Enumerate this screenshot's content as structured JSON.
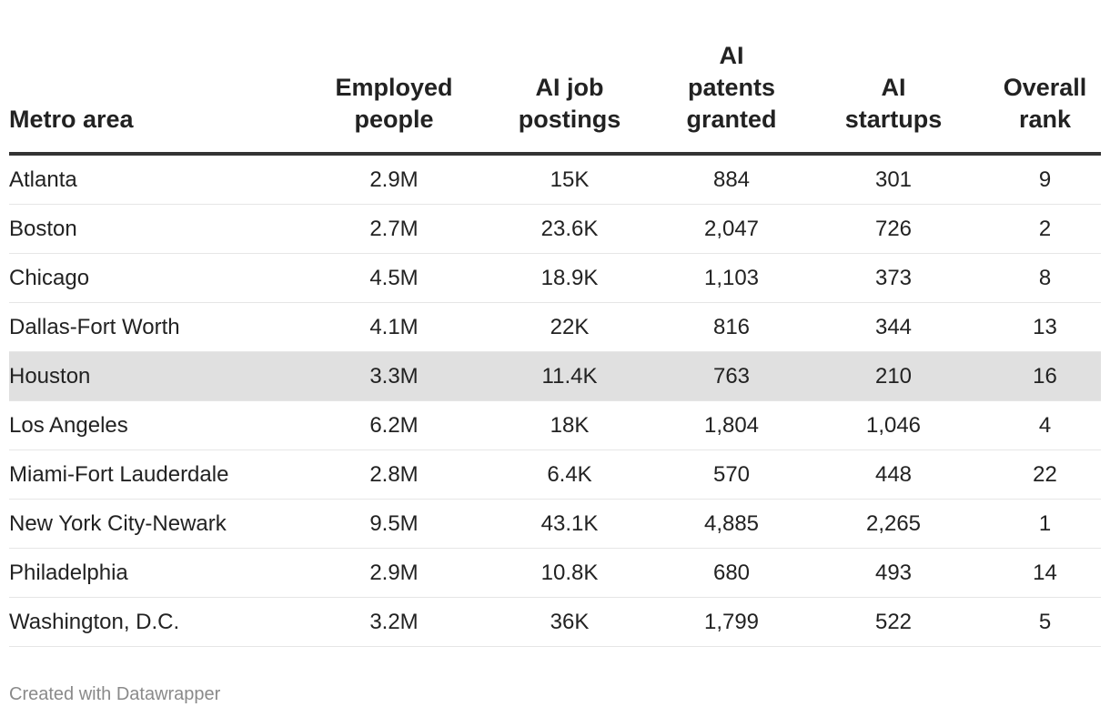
{
  "headers": [
    "Metro area",
    "Employed people",
    "AI job postings",
    "AI patents granted",
    "AI startups",
    "Overall rank"
  ],
  "rows": [
    [
      "Atlanta",
      "2.9M",
      "15K",
      "884",
      "301",
      "9"
    ],
    [
      "Boston",
      "2.7M",
      "23.6K",
      "2,047",
      "726",
      "2"
    ],
    [
      "Chicago",
      "4.5M",
      "18.9K",
      "1,103",
      "373",
      "8"
    ],
    [
      "Dallas-Fort Worth",
      "4.1M",
      "22K",
      "816",
      "344",
      "13"
    ],
    [
      "Houston",
      "3.3M",
      "11.4K",
      "763",
      "210",
      "16"
    ],
    [
      "Los Angeles",
      "6.2M",
      "18K",
      "1,804",
      "1,046",
      "4"
    ],
    [
      "Miami-Fort Lauderdale",
      "2.8M",
      "6.4K",
      "570",
      "448",
      "22"
    ],
    [
      "New York City-Newark",
      "9.5M",
      "43.1K",
      "4,885",
      "2,265",
      "1"
    ],
    [
      "Philadelphia",
      "2.9M",
      "10.8K",
      "680",
      "493",
      "14"
    ],
    [
      "Washington, D.C.",
      "3.2M",
      "36K",
      "1,799",
      "522",
      "5"
    ]
  ],
  "highlighted_row": "Houston",
  "highlight_color": "#e0e0e0",
  "footer": "Created with Datawrapper"
}
